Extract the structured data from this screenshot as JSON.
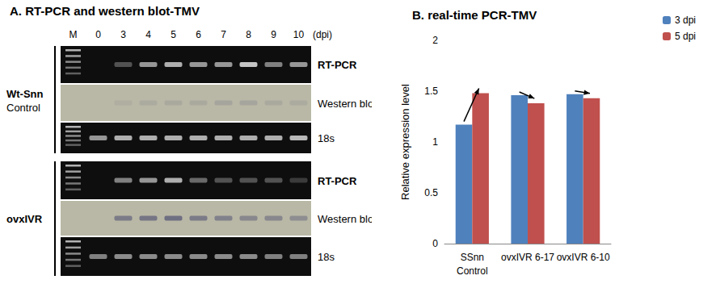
{
  "panel_a": {
    "title": "A. RT-PCR and western blot-TMV",
    "lanes": [
      "M",
      "0",
      "3",
      "4",
      "5",
      "6",
      "7",
      "8",
      "9",
      "10"
    ],
    "lane_unit": "(dpi)",
    "groups": [
      {
        "label": [
          "Wt-Snn",
          "Control"
        ],
        "rows": [
          {
            "label": "RT-PCR",
            "band_intensity": [
              0,
              0.3,
              0.6,
              0.7,
              0.6,
              0.6,
              0.8,
              0.5,
              0.6
            ]
          },
          {
            "label": "Western blot",
            "band_intensity": [
              0,
              0.08,
              0.1,
              0.12,
              0.12,
              0.15,
              0.15,
              0.12,
              0.1
            ]
          },
          {
            "label": "18s",
            "band_intensity": [
              0.6,
              0.7,
              0.7,
              0.7,
              0.7,
              0.7,
              0.7,
              0.7,
              0.75
            ]
          }
        ]
      },
      {
        "label": [
          "ovxIVR"
        ],
        "rows": [
          {
            "label": "RT-PCR",
            "band_intensity": [
              0,
              0.5,
              0.6,
              0.7,
              0.4,
              0.3,
              0.3,
              0.3,
              0.2
            ]
          },
          {
            "label": "Western blot",
            "band_intensity": [
              0,
              0.5,
              0.55,
              0.6,
              0.5,
              0.45,
              0.4,
              0.4,
              0.35
            ]
          },
          {
            "label": "18s",
            "band_intensity": [
              0.5,
              0.55,
              0.55,
              0.55,
              0.55,
              0.55,
              0.55,
              0.5,
              0.5
            ]
          }
        ]
      }
    ]
  },
  "chart_data": {
    "type": "bar",
    "title": "B. real-time PCR-TMV",
    "categories": [
      "SSnn\nControl",
      "ovxIVR 6-17",
      "ovxIVR 6-10"
    ],
    "series": [
      {
        "name": "3 dpi",
        "color": "#4f81bd",
        "values": [
          1.17,
          1.46,
          1.47
        ]
      },
      {
        "name": "5 dpi",
        "color": "#c0504d",
        "values": [
          1.48,
          1.38,
          1.43
        ]
      }
    ],
    "y_label": "Relative expression level",
    "ylim": [
      0,
      2
    ],
    "yticks": [
      0,
      0.5,
      1,
      1.5,
      2
    ],
    "grid": false,
    "legend": "upper right"
  }
}
